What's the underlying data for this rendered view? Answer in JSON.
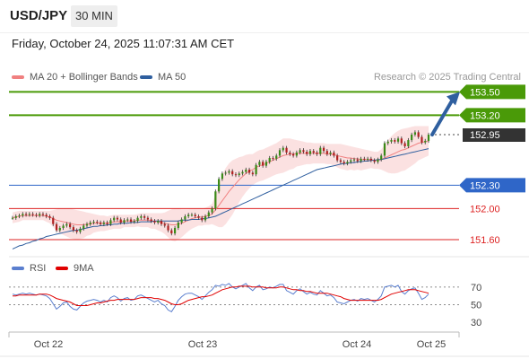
{
  "header": {
    "pair": "USD/JPY",
    "timeframe": "30 MIN"
  },
  "timestamp": "Friday, October 24, 2025 11:07:31 AM CET",
  "legend": {
    "ma20": {
      "label": "MA 20 + Bollinger Bands",
      "color": "#f08080"
    },
    "ma50": {
      "label": "MA 50",
      "color": "#2f5f9f"
    },
    "rsi": {
      "label": "RSI",
      "color": "#5b7fcf"
    },
    "ma9": {
      "label": "9MA",
      "color": "#e00000"
    }
  },
  "credit": "Research © 2025 Trading Central",
  "chart_data": [
    {
      "type": "line",
      "ylim": [
        151.45,
        153.55
      ],
      "x_ticks": [
        "Oct 22",
        "Oct 23",
        "Oct 24",
        "Oct 25"
      ],
      "levels": [
        {
          "value": 153.5,
          "label": "153.50",
          "kind": "resistance",
          "color": "#4a9a08"
        },
        {
          "value": 153.2,
          "label": "153.20",
          "kind": "resistance",
          "color": "#4a9a08"
        },
        {
          "value": 152.95,
          "label": "152.95",
          "kind": "last",
          "color": "#333333"
        },
        {
          "value": 152.3,
          "label": "152.30",
          "kind": "pivot",
          "color": "#2f66c8"
        },
        {
          "value": 152.0,
          "label": "152.00",
          "kind": "support",
          "color": "#dd2222"
        },
        {
          "value": 151.6,
          "label": "151.60",
          "kind": "support",
          "color": "#dd2222"
        }
      ],
      "price": [
        151.88,
        151.9,
        151.91,
        151.93,
        151.92,
        151.93,
        151.92,
        151.91,
        151.93,
        151.92,
        151.9,
        151.88,
        151.8,
        151.72,
        151.75,
        151.78,
        151.8,
        151.76,
        151.72,
        151.7,
        151.74,
        151.78,
        151.8,
        151.82,
        151.83,
        151.82,
        151.8,
        151.82,
        151.8,
        151.85,
        151.88,
        151.86,
        151.82,
        151.85,
        151.86,
        151.83,
        151.84,
        151.88,
        151.9,
        151.88,
        151.86,
        151.84,
        151.82,
        151.84,
        151.8,
        151.78,
        151.72,
        151.68,
        151.75,
        151.82,
        151.86,
        151.9,
        151.92,
        151.92,
        151.9,
        151.88,
        151.85,
        151.9,
        151.95,
        152.0,
        152.22,
        152.38,
        152.45,
        152.46,
        152.48,
        152.44,
        152.43,
        152.45,
        152.47,
        152.5,
        152.46,
        152.44,
        152.56,
        152.6,
        152.55,
        152.6,
        152.65,
        152.64,
        152.68,
        152.75,
        152.78,
        152.72,
        152.7,
        152.68,
        152.72,
        152.75,
        152.73,
        152.7,
        152.74,
        152.72,
        152.7,
        152.78,
        152.74,
        152.7,
        152.72,
        152.68,
        152.62,
        152.6,
        152.58,
        152.6,
        152.62,
        152.63,
        152.61,
        152.64,
        152.63,
        152.64,
        152.62,
        152.6,
        152.63,
        152.68,
        152.84,
        152.86,
        152.88,
        152.86,
        152.9,
        152.84,
        152.8,
        152.88,
        152.95,
        152.98,
        152.92,
        152.85,
        152.87,
        152.95
      ],
      "ma20": [
        151.88,
        151.89,
        151.9,
        151.91,
        151.91,
        151.91,
        151.91,
        151.91,
        151.91,
        151.91,
        151.9,
        151.89,
        151.87,
        151.85,
        151.84,
        151.83,
        151.82,
        151.81,
        151.8,
        151.79,
        151.79,
        151.79,
        151.8,
        151.8,
        151.81,
        151.81,
        151.81,
        151.81,
        151.81,
        151.82,
        151.83,
        151.83,
        151.83,
        151.84,
        151.84,
        151.84,
        151.84,
        151.85,
        151.85,
        151.85,
        151.85,
        151.84,
        151.84,
        151.83,
        151.82,
        151.81,
        151.8,
        151.79,
        151.79,
        151.8,
        151.81,
        151.83,
        151.85,
        151.87,
        151.88,
        151.89,
        151.89,
        151.9,
        151.91,
        151.93,
        151.98,
        152.04,
        152.1,
        152.16,
        152.22,
        152.27,
        152.32,
        152.37,
        152.41,
        152.45,
        152.48,
        152.5,
        152.53,
        152.55,
        152.56,
        152.58,
        152.6,
        152.62,
        152.64,
        152.66,
        152.68,
        152.69,
        152.7,
        152.7,
        152.71,
        152.71,
        152.71,
        152.71,
        152.71,
        152.71,
        152.71,
        152.71,
        152.71,
        152.7,
        152.7,
        152.69,
        152.68,
        152.67,
        152.66,
        152.65,
        152.65,
        152.64,
        152.64,
        152.63,
        152.63,
        152.63,
        152.63,
        152.62,
        152.62,
        152.63,
        152.65,
        152.67,
        152.69,
        152.71,
        152.73,
        152.75,
        152.76,
        152.78,
        152.8,
        152.82,
        152.84,
        152.85,
        152.86,
        152.87
      ],
      "bb_upper": [
        151.95,
        151.96,
        151.97,
        151.97,
        151.97,
        151.97,
        151.97,
        151.97,
        151.97,
        151.97,
        151.97,
        151.97,
        151.98,
        151.99,
        152.0,
        152.0,
        152.0,
        152.0,
        151.99,
        151.98,
        151.97,
        151.96,
        151.95,
        151.94,
        151.93,
        151.92,
        151.91,
        151.91,
        151.9,
        151.91,
        151.92,
        151.92,
        151.92,
        151.92,
        151.92,
        151.92,
        151.92,
        151.93,
        151.94,
        151.94,
        151.94,
        151.94,
        151.94,
        151.94,
        151.94,
        151.95,
        151.97,
        151.99,
        152.0,
        152.0,
        151.99,
        151.99,
        151.99,
        152.0,
        152.0,
        152.0,
        152.0,
        152.01,
        152.03,
        152.06,
        152.18,
        152.32,
        152.44,
        152.52,
        152.58,
        152.62,
        152.64,
        152.66,
        152.67,
        152.69,
        152.7,
        152.7,
        152.73,
        152.75,
        152.76,
        152.78,
        152.8,
        152.82,
        152.84,
        152.87,
        152.9,
        152.9,
        152.9,
        152.89,
        152.88,
        152.87,
        152.86,
        152.85,
        152.85,
        152.84,
        152.84,
        152.84,
        152.84,
        152.83,
        152.83,
        152.83,
        152.83,
        152.83,
        152.82,
        152.81,
        152.8,
        152.79,
        152.78,
        152.77,
        152.76,
        152.75,
        152.74,
        152.73,
        152.73,
        152.76,
        152.82,
        152.88,
        152.93,
        152.97,
        153.0,
        153.02,
        153.03,
        153.04,
        153.05,
        153.06,
        153.06,
        153.06,
        153.06,
        153.06
      ],
      "bb_lower": [
        151.81,
        151.82,
        151.83,
        151.85,
        151.85,
        151.85,
        151.85,
        151.85,
        151.85,
        151.85,
        151.83,
        151.81,
        151.76,
        151.71,
        151.68,
        151.66,
        151.64,
        151.62,
        151.61,
        151.6,
        151.61,
        151.62,
        151.65,
        151.66,
        151.69,
        151.7,
        151.71,
        151.71,
        151.72,
        151.73,
        151.74,
        151.74,
        151.74,
        151.76,
        151.76,
        151.76,
        151.76,
        151.77,
        151.76,
        151.76,
        151.76,
        151.74,
        151.74,
        151.72,
        151.7,
        151.67,
        151.63,
        151.59,
        151.58,
        151.6,
        151.63,
        151.67,
        151.71,
        151.74,
        151.76,
        151.78,
        151.78,
        151.79,
        151.79,
        151.8,
        151.78,
        151.76,
        151.76,
        151.8,
        151.86,
        151.92,
        152.0,
        152.08,
        152.15,
        152.21,
        152.26,
        152.3,
        152.33,
        152.35,
        152.36,
        152.38,
        152.4,
        152.42,
        152.44,
        152.45,
        152.46,
        152.48,
        152.5,
        152.51,
        152.54,
        152.55,
        152.56,
        152.57,
        152.57,
        152.58,
        152.58,
        152.58,
        152.58,
        152.57,
        152.57,
        152.55,
        152.53,
        152.51,
        152.5,
        152.49,
        152.5,
        152.49,
        152.5,
        152.49,
        152.5,
        152.51,
        152.52,
        152.51,
        152.51,
        152.5,
        152.48,
        152.46,
        152.45,
        152.45,
        152.46,
        152.48,
        152.49,
        152.52,
        152.55,
        152.58,
        152.62,
        152.64,
        152.66,
        152.68
      ],
      "ma50": [
        151.48,
        151.5,
        151.52,
        151.53,
        151.55,
        151.56,
        151.58,
        151.59,
        151.61,
        151.62,
        151.64,
        151.65,
        151.66,
        151.67,
        151.68,
        151.69,
        151.7,
        151.71,
        151.72,
        151.72,
        151.73,
        151.74,
        151.75,
        151.76,
        151.77,
        151.77,
        151.78,
        151.78,
        151.79,
        151.79,
        151.8,
        151.8,
        151.81,
        151.81,
        151.81,
        151.82,
        151.82,
        151.82,
        151.83,
        151.83,
        151.83,
        151.83,
        151.84,
        151.84,
        151.84,
        151.84,
        151.84,
        151.84,
        151.84,
        151.84,
        151.85,
        151.85,
        151.85,
        151.86,
        151.86,
        151.86,
        151.87,
        151.87,
        151.88,
        151.89,
        151.9,
        151.92,
        151.94,
        151.96,
        151.98,
        152.0,
        152.02,
        152.04,
        152.06,
        152.08,
        152.1,
        152.12,
        152.14,
        152.16,
        152.18,
        152.2,
        152.22,
        152.24,
        152.26,
        152.28,
        152.3,
        152.32,
        152.34,
        152.36,
        152.38,
        152.4,
        152.42,
        152.44,
        152.46,
        152.48,
        152.5,
        152.51,
        152.52,
        152.53,
        152.54,
        152.55,
        152.56,
        152.57,
        152.58,
        152.58,
        152.59,
        152.59,
        152.6,
        152.6,
        152.61,
        152.61,
        152.62,
        152.62,
        152.63,
        152.63,
        152.64,
        152.65,
        152.66,
        152.67,
        152.68,
        152.69,
        152.7,
        152.71,
        152.72,
        152.73,
        152.74,
        152.75,
        152.76,
        152.77
      ],
      "projection": {
        "from": 152.95,
        "to": 153.5
      }
    },
    {
      "type": "line",
      "ylim": [
        25,
        78
      ],
      "y_ticks": [
        70,
        50,
        30
      ],
      "rsi": [
        62,
        61,
        62,
        63,
        62,
        63,
        62,
        61,
        62,
        61,
        60,
        57,
        51,
        45,
        48,
        52,
        53,
        48,
        45,
        44,
        48,
        52,
        54,
        55,
        56,
        55,
        53,
        55,
        53,
        58,
        60,
        58,
        54,
        57,
        58,
        55,
        56,
        60,
        61,
        59,
        57,
        55,
        53,
        55,
        51,
        49,
        44,
        42,
        48,
        55,
        59,
        62,
        63,
        63,
        61,
        59,
        56,
        60,
        64,
        67,
        72,
        71,
        73,
        72,
        74,
        70,
        68,
        70,
        72,
        74,
        69,
        66,
        70,
        72,
        67,
        68,
        70,
        69,
        71,
        73,
        73,
        66,
        64,
        62,
        66,
        68,
        65,
        62,
        64,
        62,
        61,
        66,
        63,
        60,
        61,
        58,
        53,
        52,
        51,
        53,
        55,
        56,
        54,
        57,
        56,
        57,
        55,
        53,
        56,
        60,
        70,
        71,
        72,
        70,
        72,
        65,
        62,
        66,
        68,
        69,
        63,
        56,
        58,
        62
      ],
      "ma9": [
        60,
        60,
        61,
        61,
        61,
        61,
        61,
        61,
        62,
        62,
        62,
        61,
        59,
        57,
        56,
        55,
        54,
        53,
        51,
        49,
        49,
        49,
        49,
        50,
        51,
        52,
        52,
        53,
        54,
        55,
        55,
        56,
        56,
        56,
        56,
        56,
        56,
        57,
        58,
        58,
        58,
        58,
        57,
        57,
        56,
        55,
        53,
        51,
        50,
        50,
        51,
        53,
        55,
        56,
        57,
        58,
        59,
        59,
        60,
        61,
        63,
        65,
        67,
        68,
        69,
        70,
        70,
        71,
        71,
        71,
        71,
        70,
        70,
        70,
        70,
        69,
        69,
        69,
        69,
        70,
        70,
        69,
        68,
        67,
        67,
        66,
        66,
        65,
        65,
        64,
        63,
        63,
        63,
        63,
        62,
        61,
        60,
        59,
        57,
        56,
        55,
        55,
        55,
        55,
        55,
        55,
        55,
        55,
        55,
        56,
        58,
        60,
        62,
        63,
        64,
        65,
        66,
        67,
        67,
        67,
        66,
        65,
        64,
        63
      ]
    }
  ]
}
